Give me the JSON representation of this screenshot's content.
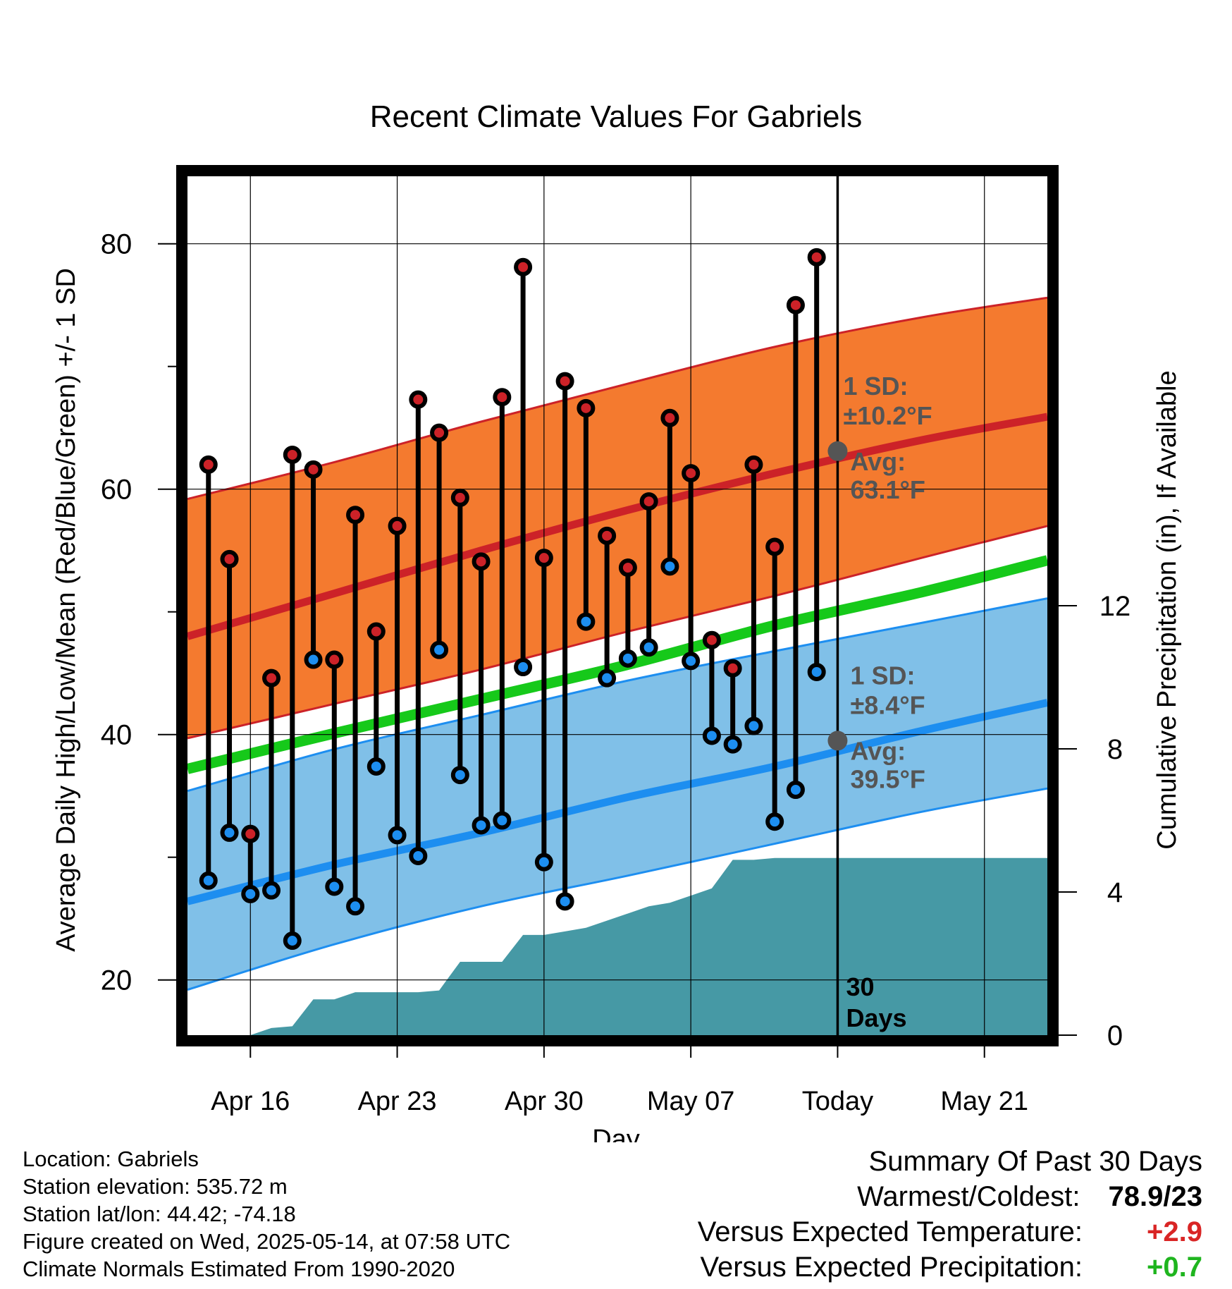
{
  "chart_data": {
    "type": "line",
    "title": "Recent Climate Values For Gabriels",
    "xlabel": "Day",
    "ylabel_left": "Average Daily High/Low/Mean (Red/Blue/Green) +/- 1 SD",
    "ylabel_right": "Cumulative Precipitation (in), If Available",
    "x_ticks": [
      "Apr 16",
      "Apr 23",
      "Apr 30",
      "May 07",
      "Today",
      "May 21"
    ],
    "y_ticks_left": [
      "20",
      "40",
      "60",
      "80"
    ],
    "y_ticks_right": [
      "0",
      "4",
      "8",
      "12"
    ],
    "ylim_left": [
      15.5,
      85.5
    ],
    "ylim_right": [
      0,
      24
    ],
    "x_start": "2025-04-13",
    "x_end": "2025-05-24",
    "today": "2025-05-14",
    "grid": true,
    "daily": {
      "dates": [
        "2025-04-14",
        "2025-04-15",
        "2025-04-16",
        "2025-04-17",
        "2025-04-18",
        "2025-04-19",
        "2025-04-20",
        "2025-04-21",
        "2025-04-22",
        "2025-04-23",
        "2025-04-24",
        "2025-04-25",
        "2025-04-26",
        "2025-04-27",
        "2025-04-28",
        "2025-04-29",
        "2025-04-30",
        "2025-05-01",
        "2025-05-02",
        "2025-05-03",
        "2025-05-04",
        "2025-05-05",
        "2025-05-06",
        "2025-05-07",
        "2025-05-08",
        "2025-05-09",
        "2025-05-10",
        "2025-05-11",
        "2025-05-12",
        "2025-05-13"
      ],
      "highs": [
        62.0,
        54.3,
        31.9,
        44.6,
        62.8,
        61.6,
        46.1,
        57.9,
        48.4,
        57.0,
        67.3,
        64.6,
        59.3,
        54.1,
        67.5,
        78.1,
        54.4,
        68.8,
        66.6,
        56.2,
        53.6,
        59.0,
        65.8,
        61.3,
        47.7,
        45.4,
        62.0,
        55.3,
        75.0,
        78.9
      ],
      "lows": [
        28.1,
        32.0,
        27.0,
        27.3,
        23.2,
        46.1,
        27.6,
        26.0,
        37.4,
        31.8,
        30.1,
        46.9,
        36.7,
        32.6,
        33.0,
        45.5,
        29.6,
        26.4,
        49.2,
        44.6,
        46.2,
        47.1,
        53.7,
        46.0,
        39.9,
        39.2,
        40.7,
        32.9,
        35.5,
        45.1
      ]
    },
    "normals": {
      "dates": [
        "2025-04-13",
        "2025-04-20",
        "2025-04-27",
        "2025-05-04",
        "2025-05-11",
        "2025-05-18",
        "2025-05-24"
      ],
      "avg_high": [
        48.0,
        51.5,
        55.0,
        58.3,
        61.3,
        64.0,
        65.9
      ],
      "high_sd_upper": [
        59.2,
        62.2,
        65.5,
        68.6,
        71.6,
        74.0,
        75.6
      ],
      "high_sd_lower": [
        39.7,
        42.5,
        45.3,
        48.4,
        51.3,
        54.4,
        57.0
      ],
      "avg_mean": [
        37.2,
        40.1,
        42.9,
        45.7,
        48.9,
        51.6,
        54.2
      ],
      "avg_low": [
        26.4,
        29.4,
        32.0,
        34.9,
        37.4,
        40.3,
        42.6
      ],
      "low_sd_upper": [
        35.4,
        38.8,
        41.6,
        44.4,
        46.8,
        49.1,
        51.1
      ],
      "low_sd_lower": [
        19.2,
        22.9,
        26.0,
        28.5,
        31.1,
        33.7,
        35.6
      ]
    },
    "precip_cumulative": {
      "dates": [
        "2025-04-13",
        "2025-04-16",
        "2025-04-17",
        "2025-04-18",
        "2025-04-19",
        "2025-04-20",
        "2025-04-21",
        "2025-04-22",
        "2025-04-23",
        "2025-04-24",
        "2025-04-25",
        "2025-04-26",
        "2025-04-27",
        "2025-04-28",
        "2025-04-29",
        "2025-04-30",
        "2025-05-01",
        "2025-05-02",
        "2025-05-03",
        "2025-05-04",
        "2025-05-05",
        "2025-05-06",
        "2025-05-07",
        "2025-05-08",
        "2025-05-09",
        "2025-05-10",
        "2025-05-11",
        "2025-05-14",
        "2025-05-24"
      ],
      "values": [
        0,
        0,
        0.2,
        0.25,
        1.0,
        1.0,
        1.2,
        1.2,
        1.2,
        1.2,
        1.25,
        2.05,
        2.05,
        2.05,
        2.8,
        2.8,
        2.9,
        3.0,
        3.2,
        3.4,
        3.6,
        3.7,
        3.9,
        4.1,
        4.9,
        4.9,
        4.95,
        4.95,
        4.95
      ]
    },
    "annotations": {
      "high_sd": "1 SD:",
      "high_sd_value": "±10.2°F",
      "high_avg": "Avg:",
      "high_avg_value": "63.1°F",
      "low_sd": "1 SD:",
      "low_sd_value": "±8.4°F",
      "low_avg": "Avg:",
      "low_avg_value": "39.5°F",
      "window_count": "30",
      "window_unit": "Days"
    },
    "colors": {
      "high_band": "#f47a2f",
      "high_avg_line": "#cc2228",
      "low_band": "#80c0e8",
      "low_avg_line": "#1d8ef0",
      "mean_line": "#16c91a",
      "precip": "#4699a5",
      "high_dot": "#cc2228",
      "low_dot": "#1d8ef0",
      "annotation": "#555555"
    }
  },
  "info": {
    "location": "Location: Gabriels",
    "elevation": "Station elevation: 535.72 m",
    "latlon": "Station lat/lon: 44.42; -74.18",
    "created": "Figure created on Wed, 2025-05-14, at 07:58 UTC",
    "normals": "Climate Normals Estimated From 1990-2020"
  },
  "summary": {
    "title": "Summary Of Past 30 Days",
    "warmest_label": "Warmest/Coldest:",
    "warmest_value": "78.9/23",
    "temp_label": "Versus Expected Temperature:",
    "temp_value": "+2.9",
    "temp_color": "#d92525",
    "precip_label": "Versus Expected Precipitation:",
    "precip_value": "+0.7",
    "precip_color": "#1fb51f"
  }
}
